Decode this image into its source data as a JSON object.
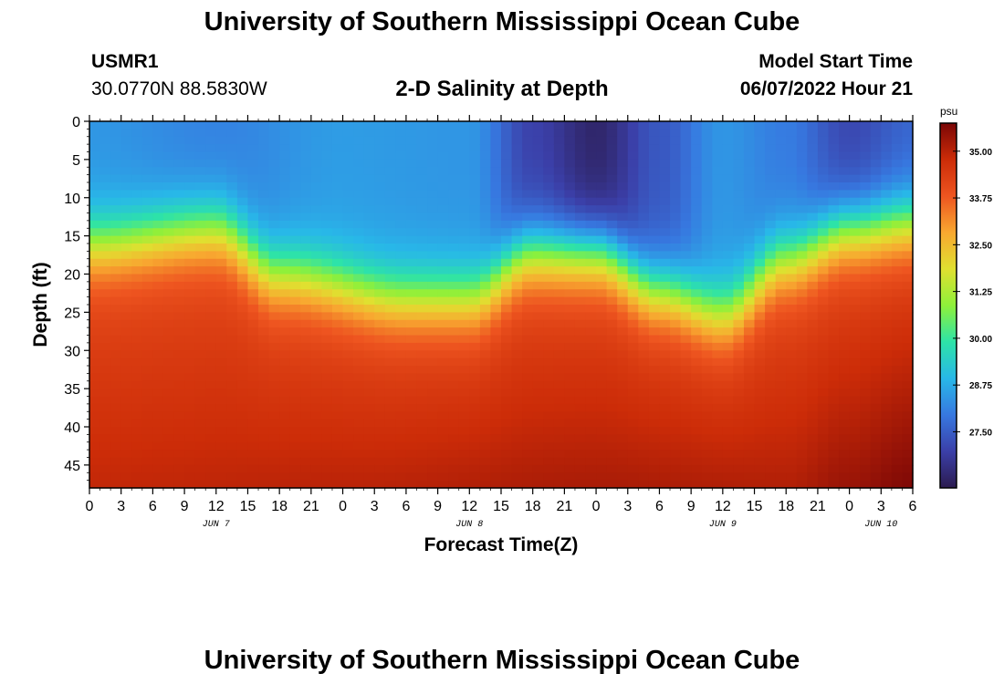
{
  "header": {
    "title": "University of Southern Mississippi Ocean Cube",
    "station": "USMR1",
    "coords": "30.0770N  88.5830W",
    "subtitle": "2-D Salinity at Depth",
    "model_start_label": "Model Start Time",
    "model_start_value": "06/07/2022 Hour 21"
  },
  "footer": {
    "title": "University of Southern Mississippi Ocean Cube"
  },
  "chart_data": {
    "type": "heatmap",
    "title": "2-D Salinity at Depth",
    "xlabel": "Forecast Time(Z)",
    "ylabel": "Depth (ft)",
    "x_hours_range": [
      0,
      78
    ],
    "y_range": [
      0,
      48
    ],
    "y_ticks": [
      0,
      5,
      10,
      15,
      20,
      25,
      30,
      35,
      40,
      45
    ],
    "x_tick_labels": [
      "0",
      "3",
      "6",
      "9",
      "12",
      "15",
      "18",
      "21",
      "0",
      "3",
      "6",
      "9",
      "12",
      "15",
      "18",
      "21",
      "0",
      "3",
      "6",
      "9",
      "12",
      "15",
      "18",
      "21",
      "0",
      "3",
      "6"
    ],
    "date_labels": [
      {
        "label": "JUN 7",
        "hour": 12
      },
      {
        "label": "JUN 8",
        "hour": 36
      },
      {
        "label": "JUN 9",
        "hour": 60
      },
      {
        "label": "JUN 10",
        "hour": 75
      }
    ],
    "colorbar": {
      "units": "psu",
      "ticks": [
        "35.00",
        "33.75",
        "32.50",
        "31.25",
        "30.00",
        "28.75",
        "27.50"
      ],
      "tick_values": [
        35.0,
        33.75,
        32.5,
        31.25,
        30.0,
        28.75,
        27.5
      ],
      "range": [
        26.0,
        35.75
      ],
      "colors": [
        "#2b1b4f",
        "#3b3fa8",
        "#3778e0",
        "#28b8e8",
        "#2de3a8",
        "#8ef03a",
        "#e0e030",
        "#f8a830",
        "#ee5520",
        "#cc2c08",
        "#7a0606"
      ]
    },
    "interface_depth_ft": [
      {
        "hour": 0,
        "depth": 16
      },
      {
        "hour": 12,
        "depth": 14
      },
      {
        "hour": 18,
        "depth": 20
      },
      {
        "hour": 30,
        "depth": 23
      },
      {
        "hour": 36,
        "depth": 23
      },
      {
        "hour": 42,
        "depth": 17
      },
      {
        "hour": 48,
        "depth": 17
      },
      {
        "hour": 54,
        "depth": 22
      },
      {
        "hour": 60,
        "depth": 25
      },
      {
        "hour": 66,
        "depth": 18
      },
      {
        "hour": 72,
        "depth": 14
      },
      {
        "hour": 78,
        "depth": 13
      }
    ],
    "surface_salinity_psu": [
      {
        "hour": 0,
        "value": 28.4
      },
      {
        "hour": 12,
        "value": 28.1
      },
      {
        "hour": 24,
        "value": 28.5
      },
      {
        "hour": 36,
        "value": 28.4
      },
      {
        "hour": 42,
        "value": 27.0
      },
      {
        "hour": 48,
        "value": 26.3
      },
      {
        "hour": 54,
        "value": 27.4
      },
      {
        "hour": 60,
        "value": 28.4
      },
      {
        "hour": 66,
        "value": 28.0
      },
      {
        "hour": 72,
        "value": 27.1
      },
      {
        "hour": 78,
        "value": 27.6
      }
    ],
    "bottom_salinity_psu": [
      {
        "hour": 0,
        "value": 34.9
      },
      {
        "hour": 24,
        "value": 35.0
      },
      {
        "hour": 48,
        "value": 35.2
      },
      {
        "hour": 66,
        "value": 35.1
      },
      {
        "hour": 72,
        "value": 35.4
      },
      {
        "hour": 78,
        "value": 35.7
      }
    ]
  }
}
